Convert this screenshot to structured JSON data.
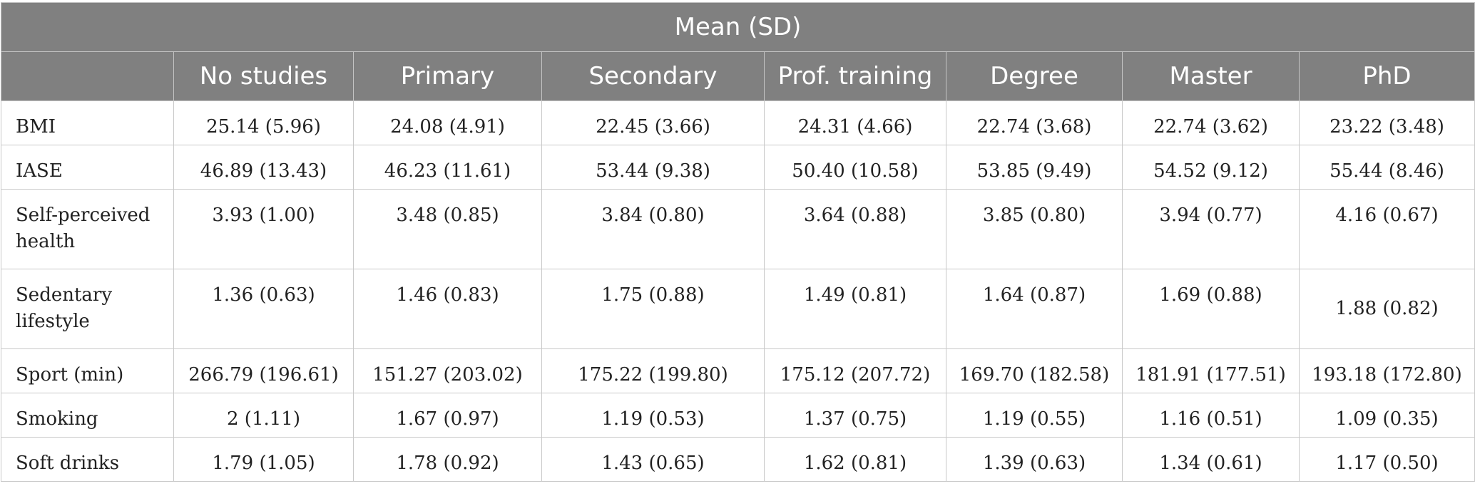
{
  "title": "Mean (SD)",
  "columns": [
    "",
    "No studies",
    "Primary",
    "Secondary",
    "Prof. training",
    "Degree",
    "Master",
    "PhD"
  ],
  "rows": [
    {
      "label": "BMI",
      "values": [
        "25.14 (5.96)",
        "24.08 (4.91)",
        "22.45 (3.66)",
        "24.31 (4.66)",
        "22.74 (3.68)",
        "22.74 (3.62)",
        "23.22 (3.48)"
      ]
    },
    {
      "label": "IASE",
      "values": [
        "46.89 (13.43)",
        "46.23 (11.61)",
        "53.44 (9.38)",
        "50.40 (10.58)",
        "53.85 (9.49)",
        "54.52 (9.12)",
        "55.44 (8.46)"
      ]
    },
    {
      "label": "Self-perceived health",
      "values": [
        "3.93 (1.00)",
        "3.48 (0.85)",
        "3.84 (0.80)",
        "3.64 (0.88)",
        "3.85 (0.80)",
        "3.94 (0.77)",
        "4.16 (0.67)"
      ]
    },
    {
      "label": "Sedentary lifestyle",
      "values": [
        "1.36 (0.63)",
        "1.46 (0.83)",
        "1.75 (0.88)",
        "1.49 (0.81)",
        "1.64 (0.87)",
        "1.69 (0.88)",
        "1.88 (0.82)"
      ]
    },
    {
      "label": "Sport (min)",
      "values": [
        "266.79 (196.61)",
        "151.27 (203.02)",
        "175.22 (199.80)",
        "175.12 (207.72)",
        "169.70 (182.58)",
        "181.91 (177.51)",
        "193.18 (172.80)"
      ]
    },
    {
      "label": "Smoking",
      "values": [
        "2 (1.11)",
        "1.67 (0.97)",
        "1.19 (0.53)",
        "1.37 (0.75)",
        "1.19 (0.55)",
        "1.16 (0.51)",
        "1.09 (0.35)"
      ]
    },
    {
      "label": "Soft drinks",
      "values": [
        "1.79 (1.05)",
        "1.78 (0.92)",
        "1.43 (0.65)",
        "1.62 (0.81)",
        "1.39 (0.63)",
        "1.34 (0.61)",
        "1.17 (0.50)"
      ]
    }
  ]
}
